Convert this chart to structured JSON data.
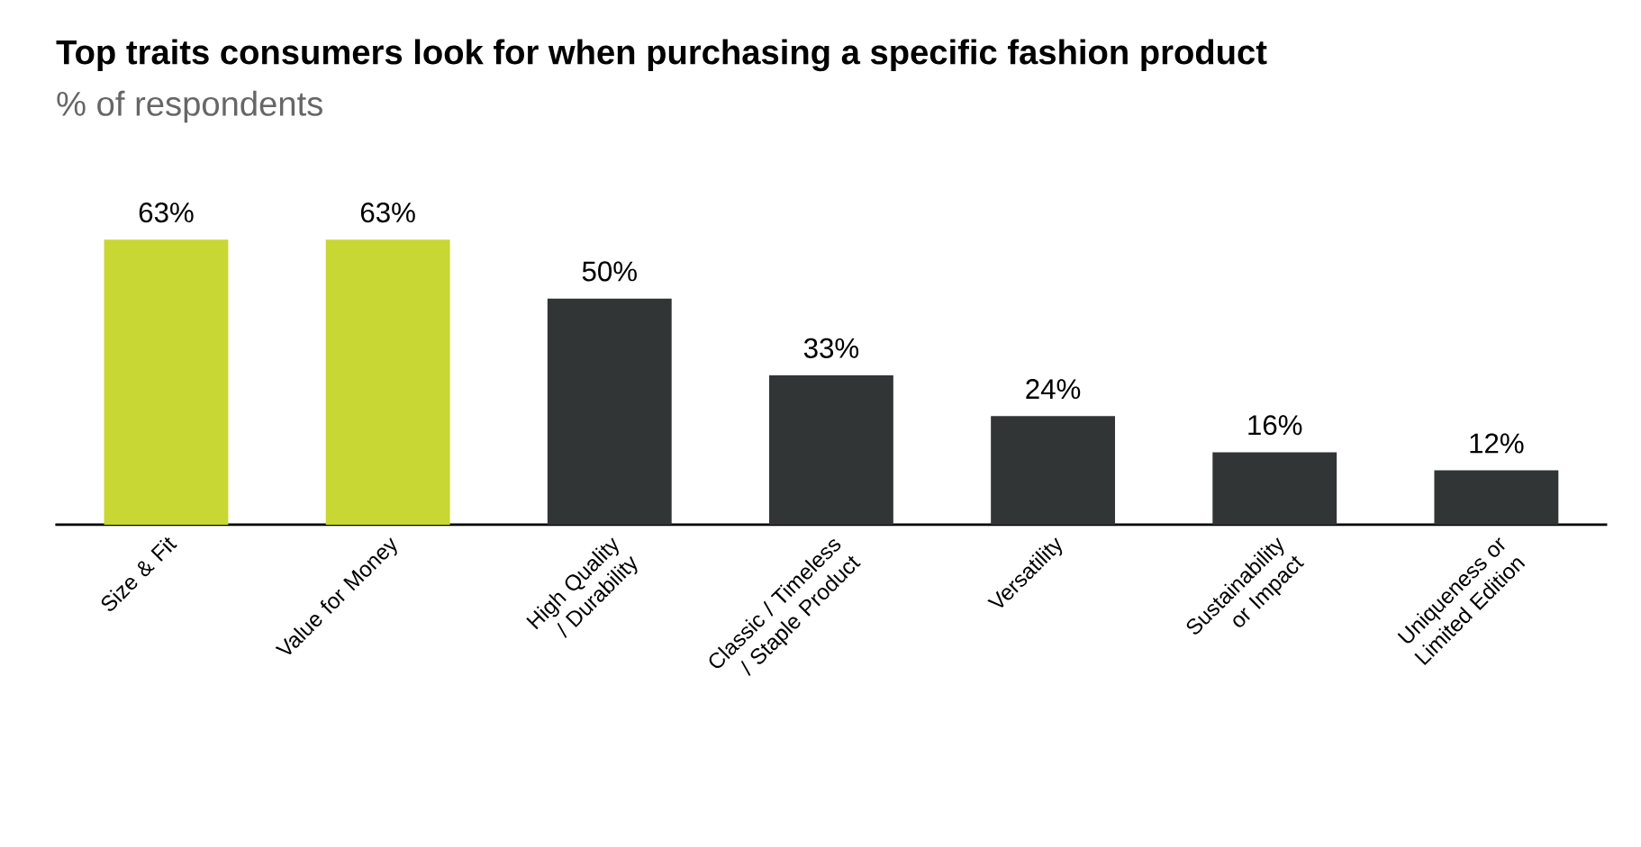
{
  "chart_data": {
    "type": "bar",
    "title": "Top traits consumers look for when purchasing a specific fashion product",
    "subtitle": "% of respondents",
    "categories": [
      "Size & Fit",
      "Value for Money",
      "High Quality / Durability",
      "Classic / Timeless / Staple Product",
      "Versatility",
      "Sustainability or Impact",
      "Uniqueness or Limited Edition"
    ],
    "values": [
      63,
      63,
      50,
      33,
      24,
      16,
      12
    ],
    "value_labels": [
      "63%",
      "63%",
      "50%",
      "33%",
      "24%",
      "16%",
      "12%"
    ],
    "colors": [
      "#c8d733",
      "#c8d733",
      "#323535",
      "#323535",
      "#323535",
      "#323535",
      "#323535"
    ]
  }
}
